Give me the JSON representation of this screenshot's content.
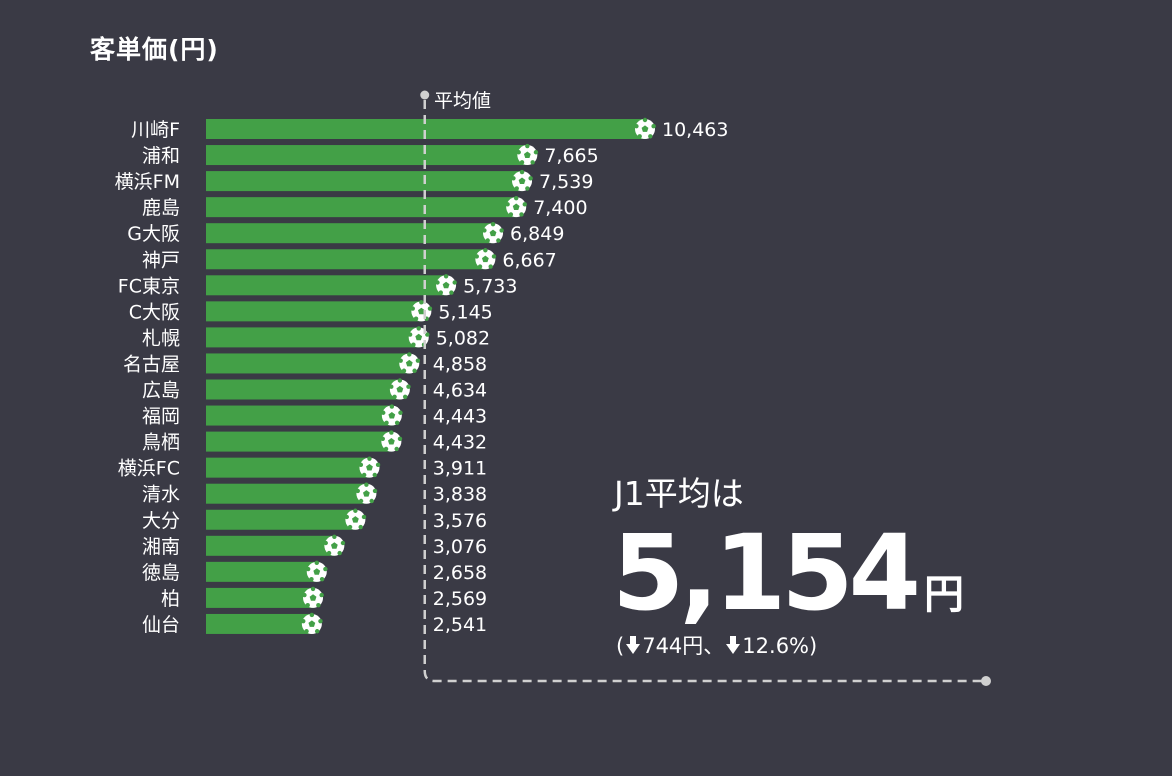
{
  "chart_data": {
    "type": "bar",
    "orientation": "horizontal",
    "title": "客単価(円)",
    "categories": [
      "川崎F",
      "浦和",
      "横浜FM",
      "鹿島",
      "G大阪",
      "神戸",
      "FC東京",
      "C大阪",
      "札幌",
      "名古屋",
      "広島",
      "福岡",
      "鳥栖",
      "横浜FC",
      "清水",
      "大分",
      "湘南",
      "徳島",
      "柏",
      "仙台"
    ],
    "values": [
      10463,
      7665,
      7539,
      7400,
      6849,
      6667,
      5733,
      5145,
      5082,
      4858,
      4634,
      4443,
      4432,
      3911,
      3838,
      3576,
      3076,
      2658,
      2569,
      2541
    ],
    "value_labels": [
      "10,463",
      "7,665",
      "7,539",
      "7,400",
      "6,849",
      "6,667",
      "5,733",
      "5,145",
      "5,082",
      "4,858",
      "4,634",
      "4,443",
      "4,432",
      "3,911",
      "3,838",
      "3,576",
      "3,076",
      "2,658",
      "2,569",
      "2,541"
    ],
    "reference_line": {
      "label": "平均値",
      "value": 5154
    },
    "xlim": [
      0,
      10463
    ],
    "bar_color": "#43a047"
  },
  "callout": {
    "label": "J1平均は",
    "value": "5,154",
    "unit": "円",
    "change_open": "(",
    "change_amount": "744円、",
    "change_percent": "12.6%)"
  },
  "colors": {
    "background": "#3a3a45",
    "bar": "#43a047",
    "text": "#ffffff",
    "reference_line": "#d0d0d0"
  }
}
